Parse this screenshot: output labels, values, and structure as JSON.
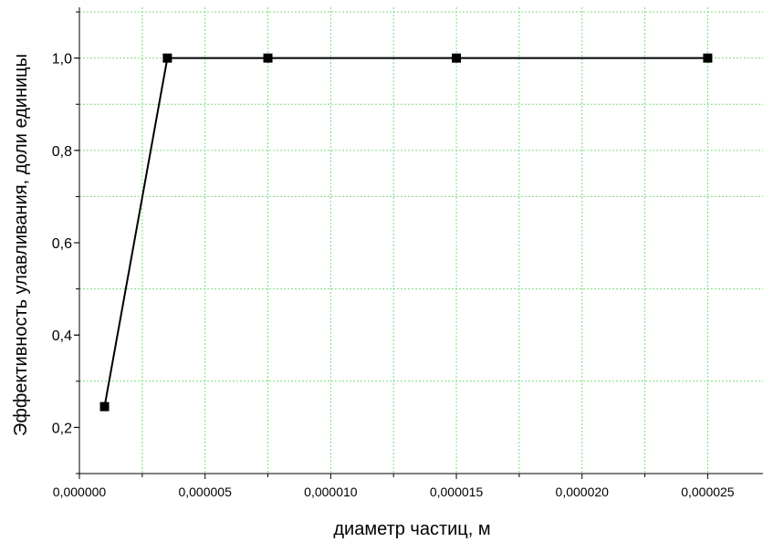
{
  "chart_data": {
    "type": "line",
    "xlabel": "диаметр частиц, м",
    "ylabel": "Эффективность улавливания, доли единицы",
    "xlim": [
      0,
      2.72e-05
    ],
    "ylim": [
      0.1,
      1.11
    ],
    "grid": true,
    "legend": "none",
    "x_ticks": [
      "0,000000",
      "0,000005",
      "0,000010",
      "0,000015",
      "0,000020",
      "0,000025"
    ],
    "y_ticks": [
      "0,2",
      "0,4",
      "0,6",
      "0,8",
      "1,0"
    ],
    "series": [
      {
        "x": [
          1e-06,
          3.5e-06,
          7.5e-06,
          1.5e-05,
          2.5e-05
        ],
        "y": [
          0.245,
          1.0,
          1.0,
          1.0,
          1.0
        ],
        "color": "#000000",
        "marker": "square"
      }
    ],
    "colors": {
      "grid": "#7cdc7c",
      "axis": "#000000",
      "line": "#000000"
    }
  }
}
